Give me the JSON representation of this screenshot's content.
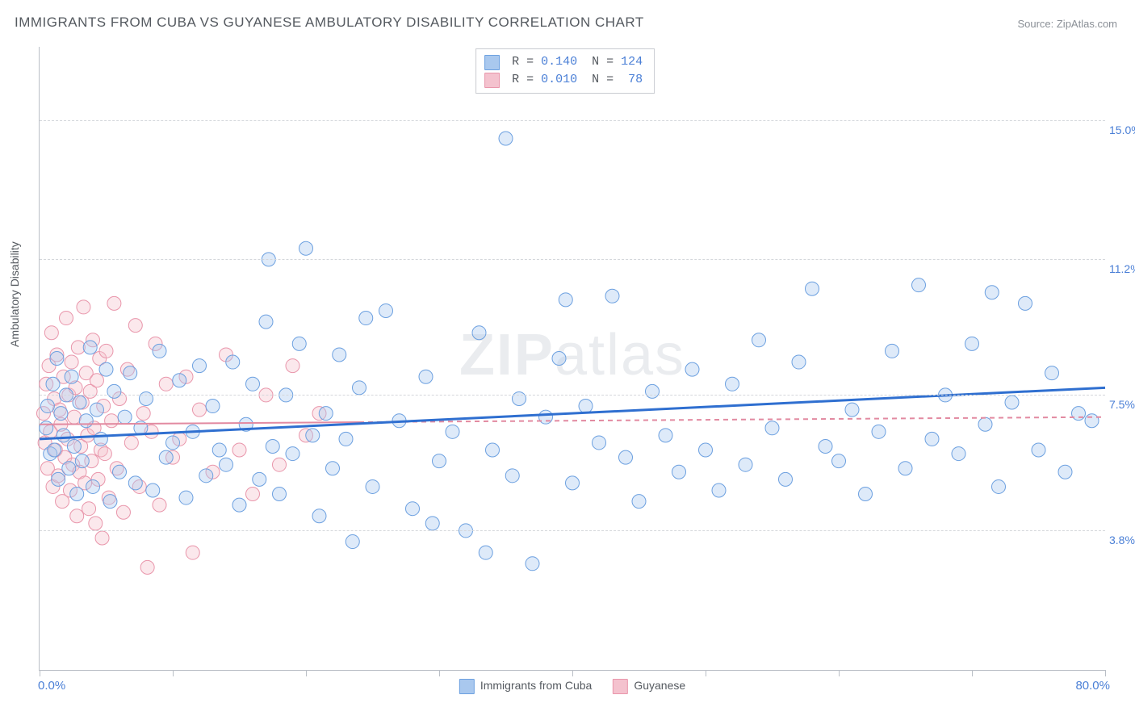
{
  "title": "IMMIGRANTS FROM CUBA VS GUYANESE AMBULATORY DISABILITY CORRELATION CHART",
  "source": "Source: ZipAtlas.com",
  "watermark": {
    "bold": "ZIP",
    "light": "atlas"
  },
  "ylabel": "Ambulatory Disability",
  "chart": {
    "type": "scatter",
    "xlim": [
      0,
      80
    ],
    "ylim": [
      0,
      17
    ],
    "xlim_labels": {
      "min": "0.0%",
      "max": "80.0%"
    },
    "xtick_positions": [
      0,
      10,
      20,
      30,
      40,
      50,
      60,
      70,
      80
    ],
    "gridlines": [
      {
        "y": 3.8,
        "label": "3.8%"
      },
      {
        "y": 7.5,
        "label": "7.5%"
      },
      {
        "y": 11.2,
        "label": "11.2%"
      },
      {
        "y": 15.0,
        "label": "15.0%"
      }
    ],
    "background_color": "#ffffff",
    "grid_color": "#d4d7db",
    "axis_color": "#babfc6",
    "marker_radius": 8.5,
    "marker_opacity": 0.38,
    "series": [
      {
        "name": "Immigrants from Cuba",
        "color_fill": "#a9c8ee",
        "color_stroke": "#6ca0e0",
        "R": "0.140",
        "N": "124",
        "trend": {
          "x1": 0,
          "y1": 6.3,
          "x2": 80,
          "y2": 7.7,
          "color": "#2f6fd0",
          "width": 3,
          "dash_after_x": null
        },
        "points": [
          [
            0.5,
            6.6
          ],
          [
            0.6,
            7.2
          ],
          [
            0.8,
            5.9
          ],
          [
            1.0,
            7.8
          ],
          [
            1.1,
            6.0
          ],
          [
            1.3,
            8.5
          ],
          [
            1.4,
            5.2
          ],
          [
            1.6,
            7.0
          ],
          [
            1.8,
            6.4
          ],
          [
            2.0,
            7.5
          ],
          [
            2.2,
            5.5
          ],
          [
            2.4,
            8.0
          ],
          [
            2.6,
            6.1
          ],
          [
            2.8,
            4.8
          ],
          [
            3.0,
            7.3
          ],
          [
            3.2,
            5.7
          ],
          [
            3.5,
            6.8
          ],
          [
            3.8,
            8.8
          ],
          [
            4.0,
            5.0
          ],
          [
            4.3,
            7.1
          ],
          [
            4.6,
            6.3
          ],
          [
            5.0,
            8.2
          ],
          [
            5.3,
            4.6
          ],
          [
            5.6,
            7.6
          ],
          [
            6.0,
            5.4
          ],
          [
            6.4,
            6.9
          ],
          [
            6.8,
            8.1
          ],
          [
            7.2,
            5.1
          ],
          [
            7.6,
            6.6
          ],
          [
            8.0,
            7.4
          ],
          [
            8.5,
            4.9
          ],
          [
            9.0,
            8.7
          ],
          [
            9.5,
            5.8
          ],
          [
            10.0,
            6.2
          ],
          [
            10.5,
            7.9
          ],
          [
            11.0,
            4.7
          ],
          [
            11.5,
            6.5
          ],
          [
            12.0,
            8.3
          ],
          [
            12.5,
            5.3
          ],
          [
            13.0,
            7.2
          ],
          [
            13.5,
            6.0
          ],
          [
            14.0,
            5.6
          ],
          [
            14.5,
            8.4
          ],
          [
            15.0,
            4.5
          ],
          [
            15.5,
            6.7
          ],
          [
            16.0,
            7.8
          ],
          [
            16.5,
            5.2
          ],
          [
            17.0,
            9.5
          ],
          [
            17.5,
            6.1
          ],
          [
            18.0,
            4.8
          ],
          [
            18.5,
            7.5
          ],
          [
            19.0,
            5.9
          ],
          [
            19.5,
            8.9
          ],
          [
            20.0,
            11.5
          ],
          [
            20.5,
            6.4
          ],
          [
            21.0,
            4.2
          ],
          [
            21.5,
            7.0
          ],
          [
            22.0,
            5.5
          ],
          [
            22.5,
            8.6
          ],
          [
            23.0,
            6.3
          ],
          [
            23.5,
            3.5
          ],
          [
            24.0,
            7.7
          ],
          [
            25.0,
            5.0
          ],
          [
            26.0,
            9.8
          ],
          [
            27.0,
            6.8
          ],
          [
            28.0,
            4.4
          ],
          [
            29.0,
            8.0
          ],
          [
            30.0,
            5.7
          ],
          [
            31.0,
            6.5
          ],
          [
            32.0,
            3.8
          ],
          [
            33.0,
            9.2
          ],
          [
            34.0,
            6.0
          ],
          [
            35.0,
            14.5
          ],
          [
            35.5,
            5.3
          ],
          [
            36.0,
            7.4
          ],
          [
            37.0,
            2.9
          ],
          [
            38.0,
            6.9
          ],
          [
            39.0,
            8.5
          ],
          [
            40.0,
            5.1
          ],
          [
            41.0,
            7.2
          ],
          [
            42.0,
            6.2
          ],
          [
            43.0,
            10.2
          ],
          [
            44.0,
            5.8
          ],
          [
            45.0,
            4.6
          ],
          [
            46.0,
            7.6
          ],
          [
            47.0,
            6.4
          ],
          [
            48.0,
            5.4
          ],
          [
            49.0,
            8.2
          ],
          [
            50.0,
            6.0
          ],
          [
            51.0,
            4.9
          ],
          [
            52.0,
            7.8
          ],
          [
            53.0,
            5.6
          ],
          [
            54.0,
            9.0
          ],
          [
            55.0,
            6.6
          ],
          [
            56.0,
            5.2
          ],
          [
            57.0,
            8.4
          ],
          [
            58.0,
            10.4
          ],
          [
            59.0,
            6.1
          ],
          [
            60.0,
            5.7
          ],
          [
            61.0,
            7.1
          ],
          [
            62.0,
            4.8
          ],
          [
            63.0,
            6.5
          ],
          [
            64.0,
            8.7
          ],
          [
            65.0,
            5.5
          ],
          [
            66.0,
            10.5
          ],
          [
            67.0,
            6.3
          ],
          [
            68.0,
            7.5
          ],
          [
            69.0,
            5.9
          ],
          [
            70.0,
            8.9
          ],
          [
            71.0,
            6.7
          ],
          [
            72.0,
            5.0
          ],
          [
            73.0,
            7.3
          ],
          [
            74.0,
            10.0
          ],
          [
            75.0,
            6.0
          ],
          [
            76.0,
            8.1
          ],
          [
            77.0,
            5.4
          ],
          [
            78.0,
            7.0
          ],
          [
            79.0,
            6.8
          ],
          [
            71.5,
            10.3
          ],
          [
            39.5,
            10.1
          ],
          [
            24.5,
            9.6
          ],
          [
            17.2,
            11.2
          ],
          [
            29.5,
            4.0
          ],
          [
            33.5,
            3.2
          ]
        ]
      },
      {
        "name": "Guyanese",
        "color_fill": "#f4c2ce",
        "color_stroke": "#e996ab",
        "R": "0.010",
        "N": "78",
        "trend": {
          "x1": 0,
          "y1": 6.7,
          "x2": 80,
          "y2": 6.9,
          "color": "#e28aa1",
          "width": 2,
          "dash_after_x": 24
        },
        "points": [
          [
            0.3,
            7.0
          ],
          [
            0.4,
            6.2
          ],
          [
            0.5,
            7.8
          ],
          [
            0.6,
            5.5
          ],
          [
            0.7,
            8.3
          ],
          [
            0.8,
            6.5
          ],
          [
            0.9,
            9.2
          ],
          [
            1.0,
            5.0
          ],
          [
            1.1,
            7.4
          ],
          [
            1.2,
            6.0
          ],
          [
            1.3,
            8.6
          ],
          [
            1.4,
            5.3
          ],
          [
            1.5,
            7.1
          ],
          [
            1.6,
            6.7
          ],
          [
            1.7,
            4.6
          ],
          [
            1.8,
            8.0
          ],
          [
            1.9,
            5.8
          ],
          [
            2.0,
            9.6
          ],
          [
            2.1,
            6.3
          ],
          [
            2.2,
            7.5
          ],
          [
            2.3,
            4.9
          ],
          [
            2.4,
            8.4
          ],
          [
            2.5,
            5.6
          ],
          [
            2.6,
            6.9
          ],
          [
            2.7,
            7.7
          ],
          [
            2.8,
            4.2
          ],
          [
            2.9,
            8.8
          ],
          [
            3.0,
            5.4
          ],
          [
            3.1,
            6.1
          ],
          [
            3.2,
            7.3
          ],
          [
            3.3,
            9.9
          ],
          [
            3.4,
            5.1
          ],
          [
            3.5,
            8.1
          ],
          [
            3.6,
            6.4
          ],
          [
            3.7,
            4.4
          ],
          [
            3.8,
            7.6
          ],
          [
            3.9,
            5.7
          ],
          [
            4.0,
            9.0
          ],
          [
            4.1,
            6.6
          ],
          [
            4.2,
            4.0
          ],
          [
            4.3,
            7.9
          ],
          [
            4.4,
            5.2
          ],
          [
            4.5,
            8.5
          ],
          [
            4.6,
            6.0
          ],
          [
            4.7,
            3.6
          ],
          [
            4.8,
            7.2
          ],
          [
            4.9,
            5.9
          ],
          [
            5.0,
            8.7
          ],
          [
            5.2,
            4.7
          ],
          [
            5.4,
            6.8
          ],
          [
            5.6,
            10.0
          ],
          [
            5.8,
            5.5
          ],
          [
            6.0,
            7.4
          ],
          [
            6.3,
            4.3
          ],
          [
            6.6,
            8.2
          ],
          [
            6.9,
            6.2
          ],
          [
            7.2,
            9.4
          ],
          [
            7.5,
            5.0
          ],
          [
            7.8,
            7.0
          ],
          [
            8.1,
            2.8
          ],
          [
            8.4,
            6.5
          ],
          [
            8.7,
            8.9
          ],
          [
            9.0,
            4.5
          ],
          [
            9.5,
            7.8
          ],
          [
            10.0,
            5.8
          ],
          [
            10.5,
            6.3
          ],
          [
            11.0,
            8.0
          ],
          [
            11.5,
            3.2
          ],
          [
            12.0,
            7.1
          ],
          [
            13.0,
            5.4
          ],
          [
            14.0,
            8.6
          ],
          [
            15.0,
            6.0
          ],
          [
            16.0,
            4.8
          ],
          [
            17.0,
            7.5
          ],
          [
            18.0,
            5.6
          ],
          [
            19.0,
            8.3
          ],
          [
            20.0,
            6.4
          ],
          [
            21.0,
            7.0
          ]
        ]
      }
    ]
  },
  "legend_bottom": [
    {
      "label": "Immigrants from Cuba",
      "fill": "#a9c8ee",
      "stroke": "#6ca0e0"
    },
    {
      "label": "Guyanese",
      "fill": "#f4c2ce",
      "stroke": "#e996ab"
    }
  ]
}
